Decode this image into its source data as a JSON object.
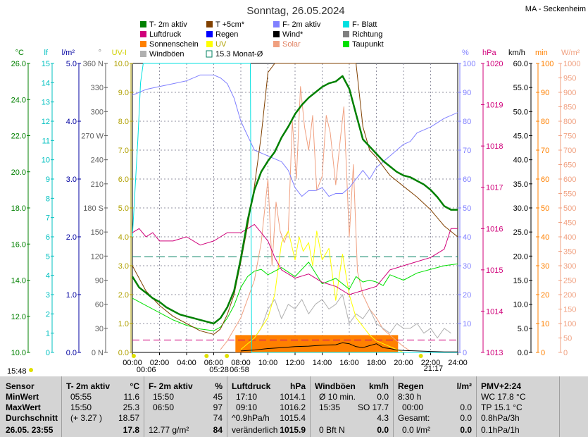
{
  "header": {
    "title": "Sonntag, 26.05.2024",
    "station": "MA - Seckenheim"
  },
  "legend": [
    {
      "label": "T- 2m aktiv",
      "color": "#008000",
      "shape": "box"
    },
    {
      "label": "T +5cm*",
      "color": "#804000",
      "shape": "box"
    },
    {
      "label": "F- 2m aktiv",
      "color": "#8080ff",
      "shape": "box"
    },
    {
      "label": "F- Blatt",
      "color": "#00e0e0",
      "shape": "box"
    },
    {
      "label": "Luftdruck",
      "color": "#d0007a",
      "shape": "box"
    },
    {
      "label": "Regen",
      "color": "#0000ff",
      "shape": "box"
    },
    {
      "label": "Wind*",
      "color": "#000000",
      "shape": "box"
    },
    {
      "label": "Richtung",
      "color": "#808080",
      "shape": "box"
    },
    {
      "label": "Sonnenschein",
      "color": "#ff8000",
      "shape": "box"
    },
    {
      "label": "UV",
      "color": "#ffff00",
      "shape": "box"
    },
    {
      "label": "Solar",
      "color": "#f0a080",
      "shape": "box"
    },
    {
      "label": "Taupunkt",
      "color": "#00e000",
      "shape": "box"
    },
    {
      "label": "Windböen",
      "color": "#b0b0b0",
      "shape": "box"
    },
    {
      "label": "15.3 Monat-Ø",
      "color": "#008060",
      "shape": "outline"
    }
  ],
  "axes": {
    "units": [
      {
        "text": "°C",
        "color": "#008000"
      },
      {
        "text": "lf",
        "color": "#00c0c0"
      },
      {
        "text": "l/m²",
        "color": "#0000a0"
      },
      {
        "text": "°",
        "color": "#808080"
      },
      {
        "text": "UV-I",
        "color": "#d0d000"
      },
      {
        "text": "%",
        "color": "#8080ff"
      },
      {
        "text": "hPa",
        "color": "#d0007a"
      },
      {
        "text": "km/h",
        "color": "#000000"
      },
      {
        "text": "min",
        "color": "#ff8000"
      },
      {
        "text": "W/m²",
        "color": "#f0a080"
      }
    ],
    "temp_ticks": [
      "10.0",
      "12.0",
      "14.0",
      "16.0",
      "18.0",
      "20.0",
      "22.0",
      "24.0",
      "26.0"
    ],
    "leaf_ticks": [
      "0",
      "1",
      "2",
      "3",
      "4",
      "5",
      "6",
      "7",
      "8",
      "9",
      "10",
      "11",
      "12",
      "13",
      "14",
      "15"
    ],
    "rain_ticks": [
      "0.0",
      "1.0",
      "2.0",
      "3.0",
      "4.0",
      "5.0"
    ],
    "dir_ticks": [
      "0 N",
      "30",
      "60",
      "90",
      "120",
      "150",
      "180 S",
      "210",
      "240",
      "270 W",
      "300",
      "330",
      "360 N"
    ],
    "uv_ticks": [
      "0.0",
      "1.0",
      "2.0",
      "3.0",
      "4.0",
      "5.0",
      "6.0",
      "7.0",
      "8.0",
      "9.0",
      "10.0"
    ],
    "hum_ticks": [
      "0",
      "10",
      "20",
      "30",
      "40",
      "50",
      "60",
      "70",
      "80",
      "90",
      "100"
    ],
    "press_ticks": [
      "1013",
      "1014",
      "1015",
      "1016",
      "1017",
      "1018",
      "1019",
      "1020"
    ],
    "wind_ticks": [
      "0.0",
      "5.0",
      "10.0",
      "15.0",
      "20.0",
      "25.0",
      "30.0",
      "35.0",
      "40.0",
      "45.0",
      "50.0",
      "55.0",
      "60.0"
    ],
    "min_ticks": [
      "0",
      "10",
      "20",
      "30",
      "40",
      "50",
      "60",
      "70",
      "80",
      "90",
      "100"
    ],
    "solar_ticks": [
      "0",
      "50",
      "100",
      "150",
      "200",
      "250",
      "300",
      "350",
      "400",
      "450",
      "500",
      "550",
      "600",
      "650",
      "700",
      "750",
      "800",
      "850",
      "900",
      "950",
      "1000"
    ],
    "time_ticks": [
      "00:00",
      "02:00",
      "04:00",
      "06:00",
      "08:00",
      "10:00",
      "12:00",
      "14:00",
      "16:00",
      "18:00",
      "20:00",
      "22:00",
      "24:00"
    ]
  },
  "time_markers": [
    {
      "label": "00:06",
      "h": 0.1
    },
    {
      "label": "05:28",
      "h": 5.47
    },
    {
      "label": "06:58",
      "h": 6.97
    },
    {
      "label": "21:17",
      "h": 21.28
    }
  ],
  "footer_left": {
    "time": "15:48"
  },
  "chart_data": {
    "type": "line",
    "x_unit": "hours",
    "xlim": [
      0,
      24
    ],
    "ylim_temp": [
      10,
      26
    ],
    "ylim_humidity": [
      0,
      100
    ],
    "ylim_pressure": [
      1013,
      1020
    ],
    "ylim_solar": [
      0,
      1000
    ],
    "month_avg_temp": 15.3,
    "series": [
      {
        "name": "T- 2m aktiv",
        "axis": "temp",
        "color": "#008000",
        "x": [
          0,
          0.5,
          1,
          1.5,
          2,
          2.5,
          3,
          3.5,
          4,
          4.5,
          5,
          5.5,
          6,
          6.5,
          7,
          7.5,
          8,
          8.5,
          9,
          9.5,
          10,
          10.5,
          11,
          11.5,
          12,
          12.5,
          13,
          13.5,
          14,
          14.5,
          15,
          15.5,
          16,
          16.5,
          17,
          17.5,
          18,
          18.5,
          19,
          19.5,
          20,
          20.5,
          21,
          21.5,
          22,
          22.5,
          23,
          23.5,
          24
        ],
        "y": [
          14.2,
          13.6,
          13.3,
          13.0,
          12.8,
          12.5,
          12.3,
          12.1,
          12.0,
          11.9,
          11.8,
          11.7,
          11.6,
          11.9,
          12.5,
          13.4,
          15.2,
          17.3,
          19.0,
          20.0,
          20.6,
          21.1,
          21.9,
          22.5,
          23.2,
          23.7,
          24.1,
          24.4,
          24.7,
          24.9,
          25.0,
          25.3,
          24.6,
          23.2,
          21.8,
          21.4,
          21.0,
          20.6,
          20.3,
          20.0,
          19.8,
          19.7,
          19.5,
          19.3,
          19.0,
          18.6,
          18.1,
          17.9,
          17.9
        ]
      },
      {
        "name": "T +5cm*",
        "axis": "temp",
        "color": "#804000",
        "x": [
          0,
          1,
          2,
          3,
          4,
          5,
          6,
          6.5,
          7,
          7.5,
          8,
          8.5,
          9,
          9.5,
          10,
          10.5,
          11,
          12,
          13,
          14,
          15,
          16,
          16.5,
          17,
          17.5,
          18,
          19,
          20,
          21,
          22,
          23,
          24
        ],
        "y": [
          14.8,
          13.4,
          12.6,
          12.0,
          11.6,
          11.2,
          11.0,
          11.3,
          12.1,
          13.2,
          15.0,
          17.0,
          19.2,
          22.0,
          25.5,
          27.5,
          28.5,
          29.5,
          30.0,
          30.0,
          29.5,
          29.0,
          26.5,
          22.5,
          21.2,
          20.8,
          19.8,
          19.2,
          18.6,
          17.9,
          17.0,
          16.4
        ]
      },
      {
        "name": "F- 2m aktiv",
        "axis": "humidity",
        "color": "#8080ff",
        "x": [
          0,
          0.5,
          1,
          2,
          3,
          4,
          5,
          6,
          6.5,
          7,
          7.5,
          8,
          8.5,
          9,
          9.5,
          10,
          10.5,
          11,
          11.5,
          12,
          12.5,
          13,
          13.5,
          14,
          14.5,
          15,
          15.5,
          16,
          16.5,
          17,
          17.5,
          18,
          18.5,
          19,
          19.5,
          20,
          20.5,
          21,
          22,
          23,
          24
        ],
        "y": [
          89,
          90,
          91,
          92,
          93,
          94,
          96,
          96,
          95,
          93,
          88,
          80,
          75,
          70,
          69,
          68,
          67,
          66,
          63,
          57,
          54,
          56,
          56,
          57,
          54,
          55,
          55,
          57,
          60,
          63,
          60,
          64,
          66,
          68,
          70,
          72,
          73,
          76,
          78,
          81,
          83
        ]
      },
      {
        "name": "F- Blatt",
        "axis": "leaf",
        "color": "#00e0e0",
        "x": [
          0,
          0.4,
          0.6,
          0.8,
          2,
          4,
          6,
          8,
          8.7,
          8.8,
          9,
          16,
          20,
          24
        ],
        "y": [
          6,
          11,
          14,
          15,
          15,
          15,
          15,
          15,
          15,
          0,
          0,
          0,
          0,
          0
        ]
      },
      {
        "name": "Luftdruck",
        "axis": "pressure",
        "color": "#d0007a",
        "x": [
          0,
          0.5,
          1,
          1.5,
          2,
          3,
          4,
          5,
          6,
          6.5,
          7,
          7.5,
          8,
          8.5,
          9,
          9.5,
          10,
          10.5,
          11,
          12,
          13,
          14,
          15,
          16,
          17,
          18,
          19,
          20,
          21,
          22,
          23,
          23.5,
          24
        ],
        "y": [
          1015.9,
          1016.0,
          1015.8,
          1015.9,
          1015.7,
          1015.7,
          1015.8,
          1015.6,
          1015.7,
          1015.8,
          1015.9,
          1015.9,
          1015.9,
          1016.0,
          1016.1,
          1015.9,
          1015.7,
          1015.3,
          1015.0,
          1014.8,
          1014.9,
          1014.7,
          1014.6,
          1014.4,
          1014.5,
          1014.6,
          1015.0,
          1015.1,
          1015.2,
          1015.3,
          1015.5,
          1016.0,
          1016.0
        ]
      },
      {
        "name": "Taupunkt",
        "axis": "temp",
        "color": "#00e000",
        "x": [
          0,
          1,
          2,
          3,
          4,
          5,
          6,
          6.5,
          7,
          7.5,
          8,
          8.5,
          9,
          9.5,
          10,
          11,
          12,
          13,
          14,
          15,
          16,
          16.5,
          17,
          17.5,
          18,
          18.5,
          19,
          20,
          21,
          22,
          23,
          24
        ],
        "y": [
          13.0,
          12.6,
          12.2,
          11.8,
          11.5,
          11.3,
          11.2,
          11.4,
          11.9,
          12.6,
          13.6,
          14.2,
          14.5,
          14.6,
          14.3,
          14.7,
          14.2,
          15.0,
          13.8,
          14.1,
          13.5,
          14.2,
          13.9,
          14.0,
          13.9,
          13.7,
          14.3,
          14.0,
          14.4,
          14.6,
          14.8,
          14.9
        ]
      },
      {
        "name": "Solar",
        "axis": "solar",
        "color": "#f0a080",
        "x": [
          6.5,
          7,
          8,
          9,
          9.5,
          10,
          10.3,
          10.6,
          10.9,
          11.2,
          11.5,
          11.8,
          12.1,
          12.4,
          12.7,
          13,
          13.3,
          13.6,
          14,
          14.3,
          14.6,
          15,
          15.3,
          15.6,
          16,
          16.3,
          16.6,
          17,
          17.5,
          18,
          18.5,
          19,
          19.5,
          20,
          20.5
        ],
        "y": [
          10,
          40,
          120,
          250,
          380,
          600,
          300,
          520,
          420,
          380,
          420,
          800,
          600,
          920,
          780,
          700,
          820,
          560,
          610,
          820,
          760,
          580,
          720,
          850,
          400,
          650,
          280,
          200,
          150,
          120,
          80,
          60,
          40,
          20,
          5
        ]
      },
      {
        "name": "UV",
        "axis": "uv",
        "color": "#ffff00",
        "x": [
          8,
          9,
          10,
          10.5,
          11,
          11.5,
          12,
          12.3,
          12.6,
          13,
          13.3,
          13.6,
          14,
          14.5,
          15,
          15.5,
          16,
          16.5,
          17,
          17.5,
          18,
          18.5,
          19,
          19.5,
          20
        ],
        "y": [
          0.1,
          0.5,
          1.2,
          2.0,
          3.8,
          4.2,
          3.2,
          4.0,
          3.5,
          3.8,
          3.0,
          4.2,
          3.2,
          3.6,
          1.8,
          3.4,
          2.0,
          1.2,
          0.9,
          0.6,
          0.4,
          0.3,
          0.2,
          0.1,
          0.0
        ]
      },
      {
        "name": "Windböen",
        "axis": "wind",
        "color": "#b0b0b0",
        "x": [
          9,
          9.5,
          10,
          10.5,
          11,
          11.5,
          12,
          12.5,
          13,
          13.5,
          14,
          14.5,
          15,
          15.5,
          16,
          16.5,
          17,
          17.5,
          18,
          18.5,
          19,
          19.5,
          20,
          20.5,
          21,
          21.5,
          22,
          22.5,
          23,
          23.5
        ],
        "y": [
          3,
          5,
          9,
          11,
          7,
          10,
          9,
          11,
          8,
          10,
          11,
          9,
          10,
          12,
          6,
          8,
          7,
          9,
          6,
          5,
          4,
          6,
          5,
          5,
          6,
          4,
          5,
          3,
          5,
          4
        ]
      },
      {
        "name": "Wind*",
        "axis": "wind",
        "color": "#000000",
        "x": [
          8,
          9,
          10,
          11,
          12,
          13,
          14,
          15,
          15.5,
          16,
          16.5,
          17,
          17.5,
          18,
          18.5,
          19,
          19.5,
          20,
          21,
          22,
          23,
          24
        ],
        "y": [
          0.3,
          0.5,
          0.8,
          1.0,
          1.2,
          1.3,
          1.5,
          1.6,
          2.0,
          1.8,
          1.2,
          1.0,
          1.4,
          1.8,
          1.0,
          0.8,
          0.5,
          0.4,
          0.3,
          0.2,
          0.1,
          0.1
        ]
      }
    ],
    "sunshine_blocks": [
      {
        "start": 7.6,
        "end": 19.6,
        "minutes": 6
      }
    ]
  },
  "footer": {
    "col_sensor": {
      "head": "Sensor",
      "rows": [
        "MinWert",
        "MaxWert",
        "Durchschnitt"
      ],
      "date": "26.05. 23:55"
    },
    "col_temp": {
      "head": "T- 2m aktiv",
      "unit": "°C",
      "rows": [
        [
          "05:55",
          "11.6"
        ],
        [
          "15:50",
          "25.3"
        ],
        [
          "(+ 3.27 )",
          "18.57"
        ]
      ],
      "current": "17.8"
    },
    "col_hum": {
      "head": "F- 2m aktiv",
      "unit": "%",
      "rows": [
        [
          "15:50",
          "45"
        ],
        [
          "06:50",
          "97"
        ],
        [
          "",
          "74"
        ]
      ],
      "extra": "12.77 g/m²",
      "current": "84"
    },
    "col_press": {
      "head": "Luftdruck",
      "unit": "hPa",
      "rows": [
        [
          "17:10",
          "1014.1"
        ],
        [
          "09:10",
          "1016.2"
        ],
        [
          "^0.9hPa/h",
          "1015.4"
        ]
      ],
      "extra": "veränderlich",
      "current": "1015.9"
    },
    "col_wind": {
      "head": "Windböen",
      "unit": "km/h",
      "rows": [
        [
          "Ø 10 min.",
          "0.0"
        ],
        [
          "15:35",
          "SO 17.7"
        ],
        [
          "",
          "4.3"
        ]
      ],
      "extra": "0 Bft N",
      "current": "0.0"
    },
    "col_rain": {
      "head": "Regen",
      "unit": "l/m²",
      "rows": [
        [
          "8:30 h",
          ""
        ],
        [
          "00:00",
          "0.0"
        ],
        [
          "Gesamt:",
          "0.0"
        ]
      ],
      "extra": "0.0 l/m²",
      "current": "0.0"
    },
    "col_pmv": {
      "head": "PMV+2:24",
      "rows": [
        "WC 17.8 °C",
        "TP 15.1 °C",
        "0.8hPa/3h",
        "0.1hPa/1h"
      ]
    }
  }
}
